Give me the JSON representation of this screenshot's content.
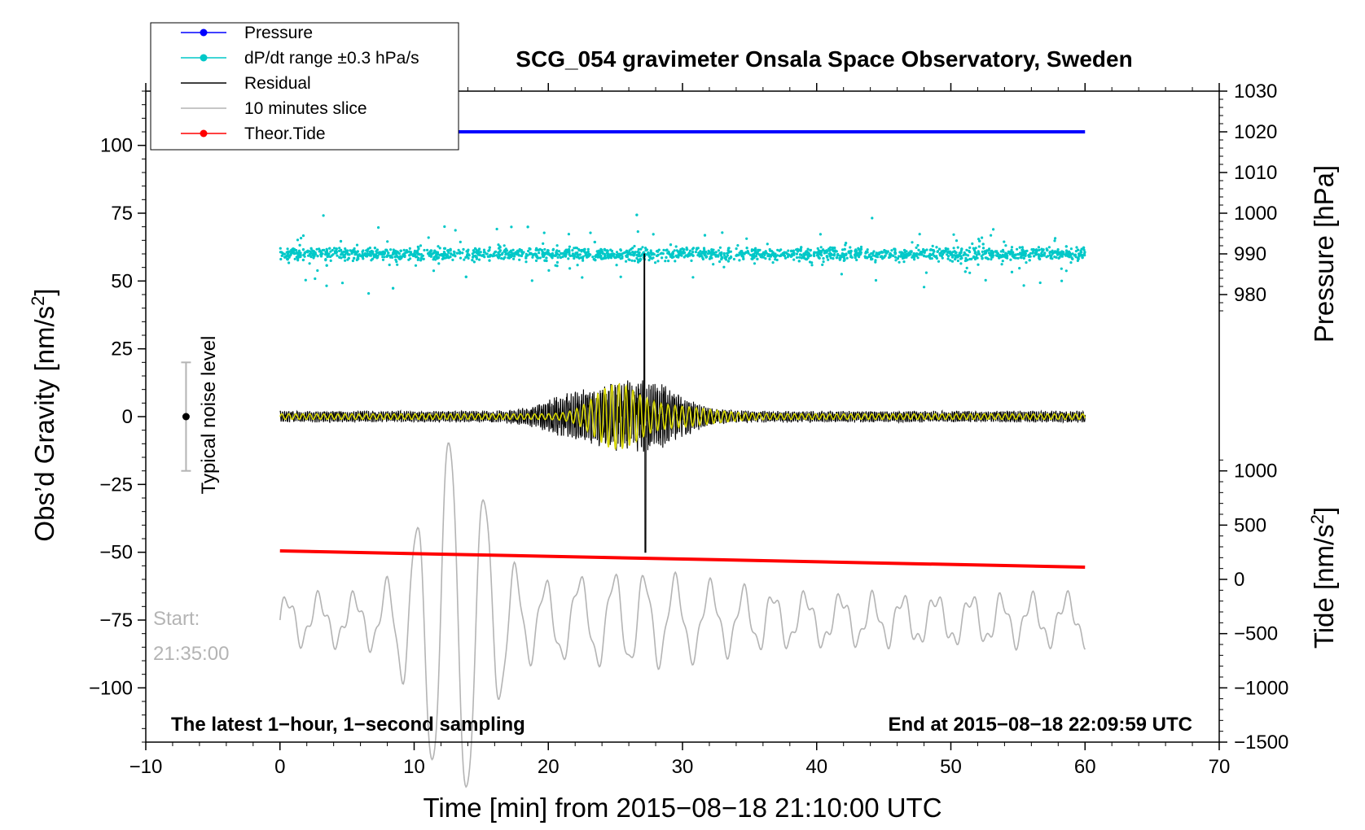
{
  "chart_data": {
    "type": "line",
    "title": "SCG_054 gravimeter Onsala Space Observatory, Sweden",
    "xlabel": "Time [min] from 2015−08−18 21:10:00 UTC",
    "ylabel_main": "Obs’d Gravity [nm/s",
    "ylabel_main_sup": "2",
    "ylabel_main_end": "]",
    "ylabel_pressure": "Pressure [hPa]",
    "ylabel_tide": "Tide [nm/s",
    "ylabel_tide_sup": "2",
    "ylabel_tide_end": "]",
    "xlim": [
      -10,
      70
    ],
    "ylim_main": [
      -120,
      120
    ],
    "ylim_pressure": [
      870,
      1030
    ],
    "ylim_tide": [
      -1500,
      4500
    ],
    "x_ticks": [
      "−10",
      "0",
      "10",
      "20",
      "30",
      "40",
      "50",
      "60",
      "70"
    ],
    "x_tick_values": [
      -10,
      0,
      10,
      20,
      30,
      40,
      50,
      60,
      70
    ],
    "y_main_ticks": [
      "100",
      "75",
      "50",
      "25",
      "0",
      "−25",
      "−50",
      "−75",
      "−100"
    ],
    "y_main_tick_values": [
      100,
      75,
      50,
      25,
      0,
      -25,
      -50,
      -75,
      -100
    ],
    "y_pressure_ticks": [
      "1030",
      "1020",
      "1010",
      "1000",
      "990",
      "980"
    ],
    "y_pressure_tick_values": [
      1030,
      1020,
      1010,
      1000,
      990,
      980
    ],
    "y_tide_ticks": [
      "1000",
      "500",
      "0",
      "−500",
      "−1000",
      "−1500"
    ],
    "y_tide_tick_values": [
      1000,
      500,
      0,
      -500,
      -1000,
      -1500
    ],
    "legend": {
      "position": "top-left",
      "entries": [
        {
          "label": "Pressure",
          "color": "#0000ff",
          "marker": true
        },
        {
          "label": "dP/dt range ±0.3 hPa/s",
          "color": "#00c8c8",
          "marker": true
        },
        {
          "label": "Residual",
          "color": "#000000",
          "marker": false
        },
        {
          "label": "10 minutes slice",
          "color": "#b4b4b4",
          "marker": false
        },
        {
          "label": "Theor.Tide",
          "color": "#ff0000",
          "marker": true
        }
      ]
    },
    "series": [
      {
        "name": "Pressure",
        "axis": "pressure",
        "color": "#0000ff",
        "x_range": [
          0,
          60
        ],
        "values_start_end": [
          1020,
          1020
        ]
      },
      {
        "name": "dP/dt range ±0.3 hPa/s",
        "axis": "main",
        "color": "#00c8c8",
        "style": "scatter",
        "x_range": [
          0,
          60
        ],
        "center": 60,
        "spread": 4
      },
      {
        "name": "Residual",
        "axis": "main",
        "color": "#000000",
        "x_range": [
          0,
          60
        ],
        "baseline": 0,
        "peak_max": 60,
        "peak_min": -50,
        "peak_time": 27.2
      },
      {
        "name": "Residual (smoothed)",
        "axis": "main",
        "color": "#d8d800",
        "x_range": [
          0,
          60
        ],
        "baseline": 0,
        "amplitude_max": 10
      },
      {
        "name": "10 minutes slice",
        "axis": "main",
        "color": "#b4b4b4",
        "x_range": [
          0,
          60
        ],
        "baseline": -75
      },
      {
        "name": "Theor.Tide",
        "axis": "main",
        "color": "#ff0000",
        "x_range": [
          0,
          60
        ],
        "values_start_end": [
          -49.5,
          -55.5
        ]
      }
    ],
    "noise_level": {
      "label": "Typical noise level",
      "x": -7,
      "center": 0,
      "low": -20,
      "high": 20
    },
    "start_label_line1": "Start:",
    "start_label_line2": "21:35:00",
    "note_left": "The latest 1−hour, 1−second sampling",
    "note_right": "End at 2015−08−18 22:09:59 UTC"
  }
}
